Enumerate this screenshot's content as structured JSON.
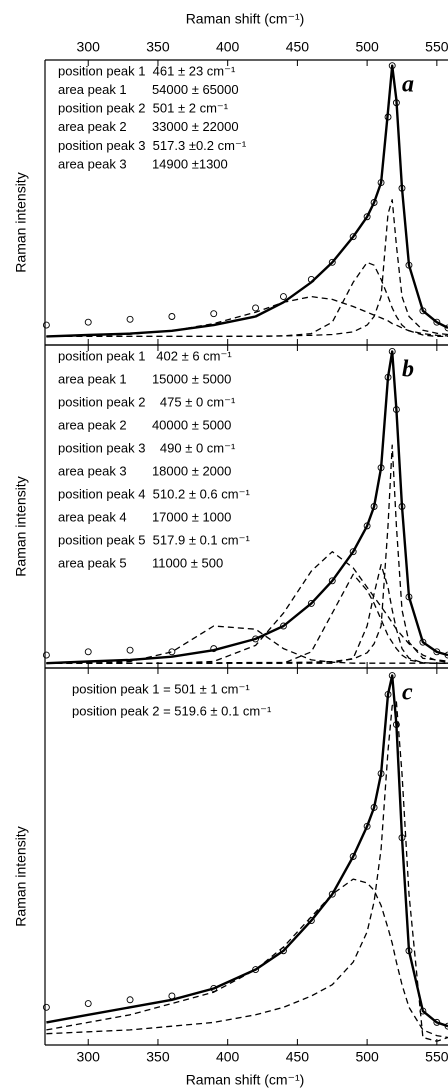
{
  "chart_data": [
    {
      "type": "line",
      "panel_label": "a",
      "xlabel": "Raman shift (cm⁻¹)",
      "xaxis_position": "top",
      "ylabel": "Raman intensity",
      "annotations": [
        "position peak 1  461 ± 23 cm⁻¹",
        "area peak 1       54000 ± 65000",
        "position peak 2  501 ± 2 cm⁻¹",
        "area peak 2       33000 ± 22000",
        "position peak 3  517.3 ±0.2 cm⁻¹",
        "area peak 3       14900 ±1300"
      ],
      "xlim": [
        269,
        558
      ],
      "xticks": [
        300,
        350,
        400,
        450,
        500,
        550
      ],
      "ylim": [
        0,
        100
      ],
      "x": [
        270,
        300,
        330,
        360,
        390,
        420,
        440,
        460,
        475,
        490,
        500,
        505,
        510,
        515,
        518,
        521,
        525,
        530,
        540,
        550,
        558
      ],
      "series": [
        {
          "style": "markers",
          "color": "#000000",
          "values": [
            7,
            8,
            9,
            10,
            11,
            13,
            17,
            23,
            29,
            38,
            45,
            50,
            57,
            80,
            98,
            85,
            55,
            28,
            12,
            8,
            6
          ]
        },
        {
          "style": "solid",
          "color": "#000000",
          "values": [
            3,
            3.5,
            4,
            5,
            7,
            10,
            15,
            22,
            29,
            38,
            45,
            50,
            57,
            82,
            98,
            86,
            55,
            28,
            12,
            8,
            6
          ]
        },
        {
          "style": "dashed",
          "color": "#000000",
          "values": [
            3,
            3.2,
            3.8,
            5,
            7.5,
            11.5,
            15,
            17,
            16,
            13.5,
            11.5,
            10.5,
            9.5,
            8.5,
            7.5,
            7,
            6,
            5,
            4,
            3.4,
            3.2
          ]
        },
        {
          "style": "dashed",
          "color": "#000000",
          "values": [
            3,
            3,
            3,
            3,
            3,
            3,
            3.2,
            4,
            8,
            22,
            29,
            28,
            23,
            17,
            13,
            10,
            7,
            5,
            3.5,
            3,
            3
          ]
        },
        {
          "style": "dashed",
          "color": "#000000",
          "values": [
            3,
            3,
            3,
            3,
            3,
            3.1,
            3.2,
            3.4,
            3.7,
            4.6,
            7,
            10,
            17,
            46,
            51,
            35,
            17,
            10,
            5.2,
            4.1,
            3.7
          ]
        }
      ]
    },
    {
      "type": "line",
      "panel_label": "b",
      "ylabel": "Raman intensity",
      "annotations": [
        "position peak 1   402 ± 6 cm⁻¹",
        "area peak 1       15000 ± 5000",
        "position peak 2    475 ± 0 cm⁻¹",
        "area peak 2       40000 ± 5000",
        "position peak 3    490 ± 0 cm⁻¹",
        "area peak 3       18000 ± 2000",
        "position peak 4  510.2 ± 0.6 cm⁻¹",
        "area peak 4       17000 ± 1000",
        "position peak 5  517.9 ± 0.1 cm⁻¹",
        "area peak 5       11000 ± 500"
      ],
      "xlim": [
        269,
        558
      ],
      "xticks": [
        300,
        350,
        400,
        450,
        500,
        550
      ],
      "ylim": [
        0,
        100
      ],
      "x": [
        270,
        300,
        330,
        360,
        390,
        420,
        440,
        460,
        475,
        490,
        500,
        505,
        510,
        515,
        518,
        521,
        525,
        530,
        540,
        550,
        558
      ],
      "series": [
        {
          "style": "markers",
          "color": "#000000",
          "values": [
            4,
            5,
            5.5,
            5,
            6,
            9,
            13,
            20,
            27,
            36,
            44,
            50,
            62,
            90,
            98,
            80,
            50,
            22,
            8,
            5,
            4
          ]
        },
        {
          "style": "solid",
          "color": "#000000",
          "values": [
            1.5,
            2,
            2.5,
            3.5,
            5.5,
            9,
            13,
            20,
            27,
            36,
            44,
            50,
            62,
            90,
            98,
            80,
            50,
            22,
            8,
            5,
            4
          ]
        },
        {
          "style": "dashed",
          "color": "#000000",
          "values": [
            1.5,
            1.5,
            2,
            5,
            13,
            12,
            6,
            2.5,
            1.8,
            1.5,
            1.5,
            1.5,
            1.5,
            1.5,
            1.5,
            1.5,
            1.5,
            1.5,
            1.5,
            1.5,
            1.5
          ]
        },
        {
          "style": "dashed",
          "color": "#000000",
          "values": [
            1.5,
            1.5,
            1.5,
            1.5,
            2,
            7,
            17,
            30,
            36,
            31,
            25,
            22,
            19,
            16,
            14,
            12,
            10,
            7.5,
            4,
            2.3,
            1.8
          ]
        },
        {
          "style": "dashed",
          "color": "#000000",
          "values": [
            1.5,
            1.5,
            1.5,
            1.5,
            1.5,
            1.5,
            1.5,
            5,
            17,
            29,
            24,
            20,
            15,
            10,
            8,
            6,
            4,
            2.5,
            1.6,
            1.5,
            1.5
          ]
        },
        {
          "style": "dashed",
          "color": "#000000",
          "values": [
            1.5,
            1.5,
            1.5,
            1.5,
            1.5,
            1.5,
            1.5,
            1.5,
            1.5,
            3,
            13,
            23,
            32,
            25,
            18,
            12,
            6,
            3,
            1.6,
            1.5,
            1.5
          ]
        },
        {
          "style": "dashed",
          "color": "#000000",
          "values": [
            1.5,
            1.5,
            1.5,
            1.5,
            1.6,
            1.7,
            1.7,
            1.8,
            2,
            2.8,
            4.7,
            7.5,
            13,
            44,
            69,
            44,
            18,
            8,
            3,
            2.5,
            2.1
          ]
        }
      ]
    },
    {
      "type": "line",
      "panel_label": "c",
      "xlabel": "Raman shift (cm⁻¹)",
      "xaxis_position": "bottom",
      "ylabel": "Raman intensity",
      "annotations": [
        "position peak 1 = 501 ± 1 cm⁻¹",
        "position peak 2 = 519.6 ± 0.1 cm⁻¹"
      ],
      "xlim": [
        269,
        558
      ],
      "xticks": [
        300,
        350,
        400,
        450,
        500,
        550
      ],
      "ylim": [
        0,
        100
      ],
      "x": [
        270,
        300,
        330,
        360,
        390,
        420,
        440,
        460,
        475,
        490,
        500,
        505,
        510,
        515,
        518,
        521,
        525,
        530,
        540,
        550,
        558
      ],
      "series": [
        {
          "style": "markers",
          "color": "#000000",
          "values": [
            10,
            11,
            12,
            13,
            15,
            20,
            25,
            33,
            40,
            50,
            58,
            63,
            72,
            93,
            98,
            85,
            55,
            25,
            9,
            6,
            5
          ]
        },
        {
          "style": "solid",
          "color": "#000000",
          "values": [
            6,
            8,
            10,
            12,
            15,
            20,
            25,
            33,
            40,
            50,
            58,
            63,
            72,
            93,
            98,
            85,
            55,
            25,
            9,
            6,
            5
          ]
        },
        {
          "style": "dashed",
          "color": "#000000",
          "values": [
            4,
            6,
            8,
            11,
            14,
            20,
            26,
            34,
            40,
            44,
            43,
            41,
            37,
            31,
            27,
            22,
            16,
            10,
            4,
            2.5,
            2
          ]
        },
        {
          "style": "dashed",
          "color": "#000000",
          "values": [
            3,
            3.5,
            4,
            5,
            6,
            8,
            10,
            13,
            16,
            22,
            30,
            38,
            52,
            78,
            90,
            91,
            72,
            40,
            2,
            1,
            2
          ]
        }
      ]
    }
  ]
}
